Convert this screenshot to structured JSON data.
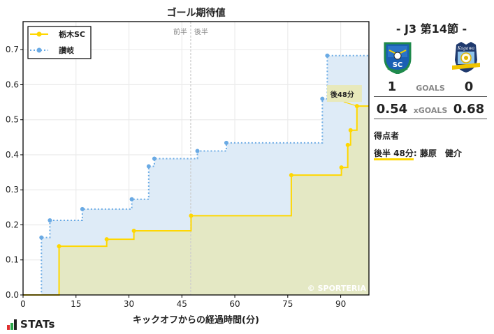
{
  "chart_data": {
    "type": "line",
    "subtype": "step-cumulative-area",
    "title": "ゴール期待値",
    "xlabel": "キックオフからの経過時間(分)",
    "ylabel": "",
    "xlim": [
      0,
      98
    ],
    "ylim": [
      0,
      0.78
    ],
    "x_ticks": [
      0,
      15,
      30,
      45,
      60,
      75,
      90
    ],
    "y_ticks": [
      0.0,
      0.1,
      0.2,
      0.3,
      0.4,
      0.5,
      0.6,
      0.7
    ],
    "grid": true,
    "legend_position": "upper left",
    "half_time_marker": {
      "x": 47.5,
      "labels": [
        "前半",
        "後半"
      ]
    },
    "annotation": {
      "text": "後48分",
      "x": 86.5,
      "y": 0.575
    },
    "watermark": "© SPORTERIA",
    "series": [
      {
        "name": "栃木SC",
        "color": "#ffd700",
        "fill": "#e4e8c4",
        "style": "solid",
        "points": [
          [
            0,
            0
          ],
          [
            10.2,
            0.139
          ],
          [
            23.7,
            0.159
          ],
          [
            31.4,
            0.183
          ],
          [
            47.6,
            0.226
          ],
          [
            76.0,
            0.342
          ],
          [
            90.2,
            0.364
          ],
          [
            92.0,
            0.428
          ],
          [
            92.8,
            0.47
          ],
          [
            94.6,
            0.539
          ],
          [
            98,
            0.539
          ]
        ]
      },
      {
        "name": "讃岐",
        "color": "#6aaae4",
        "fill": "#deebf7",
        "style": "dotted",
        "points": [
          [
            0,
            0
          ],
          [
            5.2,
            0.164
          ],
          [
            7.6,
            0.213
          ],
          [
            16.8,
            0.245
          ],
          [
            30.8,
            0.273
          ],
          [
            35.6,
            0.367
          ],
          [
            37.2,
            0.389
          ],
          [
            49.4,
            0.411
          ],
          [
            57.6,
            0.434
          ],
          [
            84.8,
            0.56
          ],
          [
            86.2,
            0.683
          ],
          [
            98,
            0.683
          ]
        ]
      }
    ]
  },
  "sidebar": {
    "match_title": "- J3 第14節 -",
    "home_team": "栃木SC",
    "away_team": "讃岐",
    "home_goals": "1",
    "away_goals": "0",
    "goals_label": "GOALS",
    "home_xg": "0.54",
    "away_xg": "0.68",
    "xg_label": "xGOALS",
    "scorers_title": "得点者",
    "scorers": [
      {
        "time": "後半 48分",
        "name": ": 藤原　健介"
      }
    ]
  },
  "footer": {
    "brand": "STATs"
  }
}
